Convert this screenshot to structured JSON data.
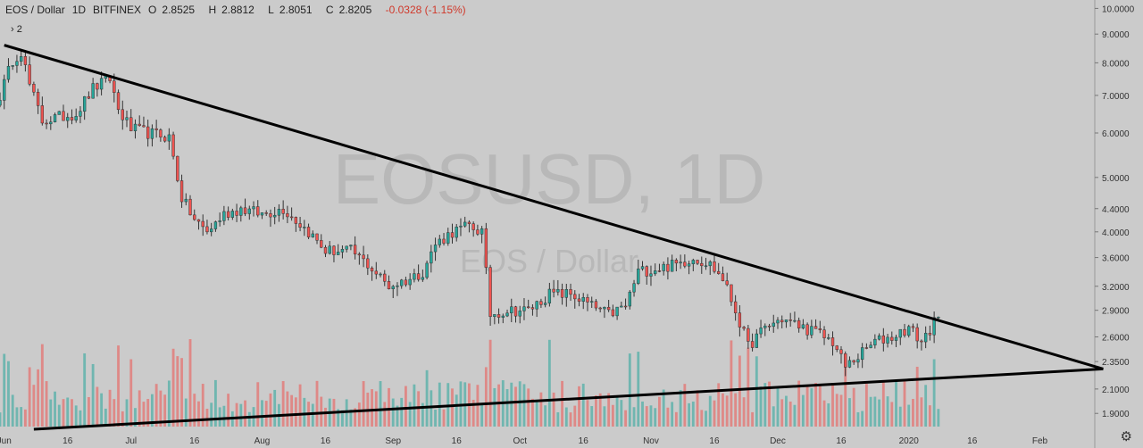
{
  "header": {
    "symbol": "EOS / Dollar",
    "interval": "1D",
    "exchange": "BITFINEX",
    "open_label": "O",
    "open": "2.8525",
    "high_label": "H",
    "high": "2.8812",
    "low_label": "L",
    "low": "2.8051",
    "close_label": "C",
    "close": "2.8205",
    "change": "-0.0328 (-1.15%)"
  },
  "indicators_toggle": "› 2",
  "settings_icon": "gear-icon",
  "watermark": {
    "main": "EOSUSD, 1D",
    "sub": "EOS / Dollar"
  },
  "colors": {
    "background": "#cbcbcb",
    "up": "#26a69a",
    "down": "#ef5350",
    "trendline": "#000000",
    "axis_text": "#333333",
    "watermark": "#b8b8b8"
  },
  "chart_data": {
    "type": "candlestick",
    "y_scale": "log",
    "y_range": [
      1.8,
      10.2
    ],
    "y_ticks": [
      "10.0000",
      "9.0000",
      "8.0000",
      "7.0000",
      "6.0000",
      "5.0000",
      "4.4000",
      "4.0000",
      "3.6000",
      "3.2000",
      "2.9000",
      "2.6000",
      "2.3500",
      "2.1000",
      "1.9000"
    ],
    "x_range": [
      "2019-05-31",
      "2020-02-14"
    ],
    "x_ticks": [
      {
        "label": "Jun",
        "date": "2019-06-01"
      },
      {
        "label": "16",
        "date": "2019-06-16"
      },
      {
        "label": "Jul",
        "date": "2019-07-01"
      },
      {
        "label": "16",
        "date": "2019-07-16"
      },
      {
        "label": "Aug",
        "date": "2019-08-01"
      },
      {
        "label": "16",
        "date": "2019-08-16"
      },
      {
        "label": "Sep",
        "date": "2019-09-01"
      },
      {
        "label": "16",
        "date": "2019-09-16"
      },
      {
        "label": "Oct",
        "date": "2019-10-01"
      },
      {
        "label": "16",
        "date": "2019-10-16"
      },
      {
        "label": "Nov",
        "date": "2019-11-01"
      },
      {
        "label": "16",
        "date": "2019-11-16"
      },
      {
        "label": "Dec",
        "date": "2019-12-01"
      },
      {
        "label": "16",
        "date": "2019-12-16"
      },
      {
        "label": "2020",
        "date": "2020-01-01"
      },
      {
        "label": "16",
        "date": "2020-01-16"
      },
      {
        "label": "Feb",
        "date": "2020-02-01"
      }
    ],
    "anchors": [
      [
        "2019-05-31",
        7.0
      ],
      [
        "2019-06-03",
        8.1
      ],
      [
        "2019-06-05",
        8.4
      ],
      [
        "2019-06-07",
        7.3
      ],
      [
        "2019-06-10",
        6.3
      ],
      [
        "2019-06-14",
        6.4
      ],
      [
        "2019-06-18",
        6.5
      ],
      [
        "2019-06-22",
        7.2
      ],
      [
        "2019-06-26",
        7.5
      ],
      [
        "2019-06-28",
        6.6
      ],
      [
        "2019-07-01",
        6.1
      ],
      [
        "2019-07-05",
        6.0
      ],
      [
        "2019-07-10",
        5.9
      ],
      [
        "2019-07-13",
        4.6
      ],
      [
        "2019-07-16",
        4.2
      ],
      [
        "2019-07-19",
        4.0
      ],
      [
        "2019-07-23",
        4.3
      ],
      [
        "2019-07-27",
        4.4
      ],
      [
        "2019-08-01",
        4.3
      ],
      [
        "2019-08-06",
        4.4
      ],
      [
        "2019-08-12",
        4.0
      ],
      [
        "2019-08-16",
        3.7
      ],
      [
        "2019-08-22",
        3.7
      ],
      [
        "2019-08-26",
        3.5
      ],
      [
        "2019-08-31",
        3.2
      ],
      [
        "2019-09-05",
        3.3
      ],
      [
        "2019-09-08",
        3.4
      ],
      [
        "2019-09-11",
        3.8
      ],
      [
        "2019-09-15",
        4.0
      ],
      [
        "2019-09-19",
        4.1
      ],
      [
        "2019-09-22",
        4.0
      ],
      [
        "2019-09-24",
        2.85
      ],
      [
        "2019-09-28",
        2.9
      ],
      [
        "2019-10-03",
        2.9
      ],
      [
        "2019-10-08",
        3.1
      ],
      [
        "2019-10-13",
        3.1
      ],
      [
        "2019-10-18",
        2.95
      ],
      [
        "2019-10-22",
        2.85
      ],
      [
        "2019-10-26",
        2.95
      ],
      [
        "2019-10-29",
        3.4
      ],
      [
        "2019-11-03",
        3.45
      ],
      [
        "2019-11-07",
        3.5
      ],
      [
        "2019-11-11",
        3.6
      ],
      [
        "2019-11-15",
        3.5
      ],
      [
        "2019-11-18",
        3.3
      ],
      [
        "2019-11-21",
        2.9
      ],
      [
        "2019-11-24",
        2.5
      ],
      [
        "2019-11-28",
        2.7
      ],
      [
        "2019-12-02",
        2.8
      ],
      [
        "2019-12-06",
        2.72
      ],
      [
        "2019-12-10",
        2.65
      ],
      [
        "2019-12-14",
        2.55
      ],
      [
        "2019-12-17",
        2.3
      ],
      [
        "2019-12-20",
        2.4
      ],
      [
        "2019-12-24",
        2.55
      ],
      [
        "2019-12-28",
        2.6
      ],
      [
        "2020-01-01",
        2.7
      ],
      [
        "2020-01-04",
        2.55
      ],
      [
        "2020-01-07",
        2.75
      ],
      [
        "2020-01-08",
        2.82
      ]
    ],
    "volume_scale": [
      0,
      1
    ],
    "volume_range_note": "relative volume",
    "trendlines": [
      {
        "name": "upper",
        "from": {
          "date": "2019-06-01",
          "price": 8.6
        },
        "to": {
          "date": "2020-02-16",
          "price": 2.28
        }
      },
      {
        "name": "lower",
        "from": {
          "date": "2019-06-08",
          "price": 1.78
        },
        "to": {
          "date": "2020-02-16",
          "price": 2.28
        }
      }
    ]
  }
}
